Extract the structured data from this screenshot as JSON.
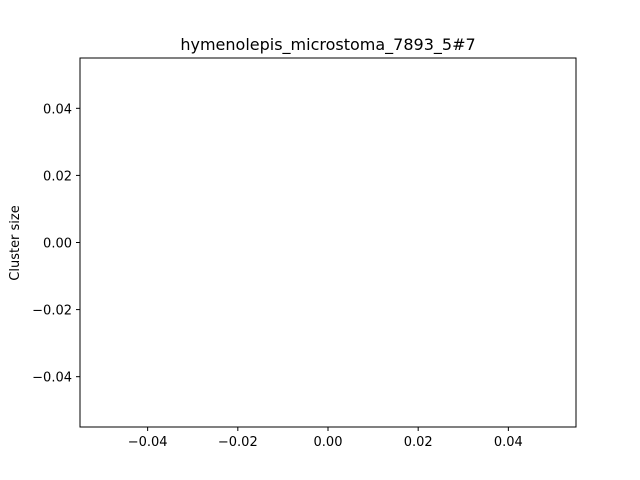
{
  "chart_data": {
    "type": "scatter",
    "title": "hymenolepis_microstoma_7893_5#7",
    "xlabel": "",
    "ylabel": "Cluster size",
    "xlim": [
      -0.055,
      0.055
    ],
    "ylim": [
      -0.055,
      0.055
    ],
    "xticks": [
      -0.04,
      -0.02,
      0.0,
      0.02,
      0.04
    ],
    "yticks": [
      -0.04,
      -0.02,
      0.0,
      0.02,
      0.04
    ],
    "xtick_labels": [
      "−0.04",
      "−0.02",
      "0.00",
      "0.02",
      "0.04"
    ],
    "ytick_labels": [
      "−0.04",
      "−0.02",
      "0.00",
      "0.02",
      "0.04"
    ],
    "grid": false,
    "series": [
      {
        "name": "",
        "x": [],
        "y": []
      }
    ]
  }
}
